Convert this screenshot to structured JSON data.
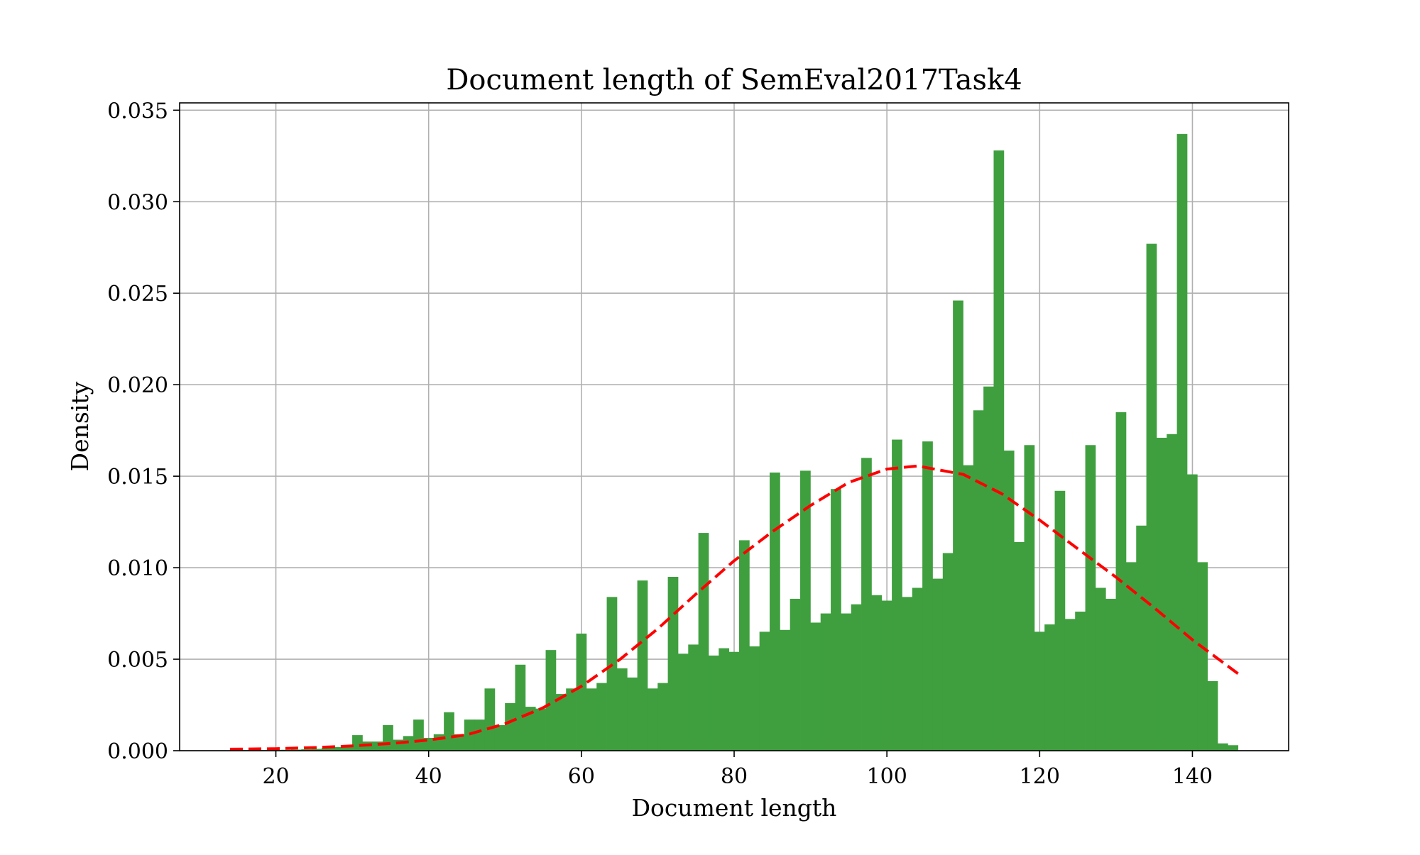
{
  "chart_data": {
    "type": "bar",
    "title": "Document length of SemEval2017Task4",
    "xlabel": "Document length",
    "ylabel": "Density",
    "xlim": [
      7.4,
      152.6
    ],
    "ylim": [
      0,
      0.0354
    ],
    "grid": true,
    "bar_color": "#3f9f3f",
    "curve_color": "#ff0000",
    "x_ticks": [
      {
        "value": 20,
        "label": "20"
      },
      {
        "value": 40,
        "label": "40"
      },
      {
        "value": 60,
        "label": "60"
      },
      {
        "value": 80,
        "label": "80"
      },
      {
        "value": 100,
        "label": "100"
      },
      {
        "value": 120,
        "label": "120"
      },
      {
        "value": 140,
        "label": "140"
      }
    ],
    "y_ticks": [
      {
        "value": 0.0,
        "label": "0.000"
      },
      {
        "value": 0.005,
        "label": "0.005"
      },
      {
        "value": 0.01,
        "label": "0.010"
      },
      {
        "value": 0.015,
        "label": "0.015"
      },
      {
        "value": 0.02,
        "label": "0.020"
      },
      {
        "value": 0.025,
        "label": "0.025"
      },
      {
        "value": 0.03,
        "label": "0.030"
      },
      {
        "value": 0.035,
        "label": "0.035"
      }
    ],
    "histogram": {
      "bin_start": 14,
      "bin_width": 1.333,
      "densities": [
        3e-05,
        3e-05,
        3e-05,
        3e-05,
        4e-05,
        5e-05,
        6e-05,
        8e-05,
        0.0001,
        0.00015,
        0.0002,
        0.0003,
        0.00085,
        0.0005,
        0.0005,
        0.0014,
        0.0006,
        0.0008,
        0.0017,
        0.0007,
        0.0009,
        0.0021,
        0.0009,
        0.0017,
        0.0017,
        0.0034,
        0.0014,
        0.0026,
        0.0047,
        0.0024,
        0.0023,
        0.0055,
        0.0031,
        0.0034,
        0.0064,
        0.0034,
        0.0037,
        0.0084,
        0.0045,
        0.004,
        0.0093,
        0.0034,
        0.0037,
        0.0095,
        0.0053,
        0.0058,
        0.0119,
        0.0052,
        0.0056,
        0.0054,
        0.0115,
        0.0057,
        0.0065,
        0.0152,
        0.0066,
        0.0083,
        0.0153,
        0.007,
        0.0075,
        0.0143,
        0.0075,
        0.008,
        0.016,
        0.0085,
        0.0082,
        0.017,
        0.0084,
        0.0089,
        0.0169,
        0.0094,
        0.0108,
        0.0246,
        0.0156,
        0.0186,
        0.0199,
        0.0328,
        0.0164,
        0.0114,
        0.0167,
        0.0065,
        0.0069,
        0.0142,
        0.0072,
        0.0076,
        0.0167,
        0.0089,
        0.0083,
        0.0185,
        0.0103,
        0.0123,
        0.0277,
        0.0171,
        0.0173,
        0.0337,
        0.0151,
        0.0103,
        0.0038,
        0.0004,
        0.0003
      ]
    },
    "fit_curve": {
      "style": "dashed",
      "x": [
        14,
        20,
        25,
        30,
        35,
        40,
        45,
        50,
        55,
        60,
        65,
        70,
        75,
        80,
        85,
        90,
        95,
        100,
        104,
        110,
        115,
        120,
        125,
        130,
        135,
        140,
        146
      ],
      "y": [
        8e-05,
        0.00011,
        0.00017,
        0.00026,
        0.00039,
        0.00058,
        0.00087,
        0.00147,
        0.00235,
        0.00352,
        0.00497,
        0.00666,
        0.00856,
        0.01038,
        0.01197,
        0.0134,
        0.01466,
        0.01539,
        0.01556,
        0.0151,
        0.01405,
        0.0126,
        0.01103,
        0.00948,
        0.00781,
        0.00606,
        0.0042
      ]
    }
  }
}
